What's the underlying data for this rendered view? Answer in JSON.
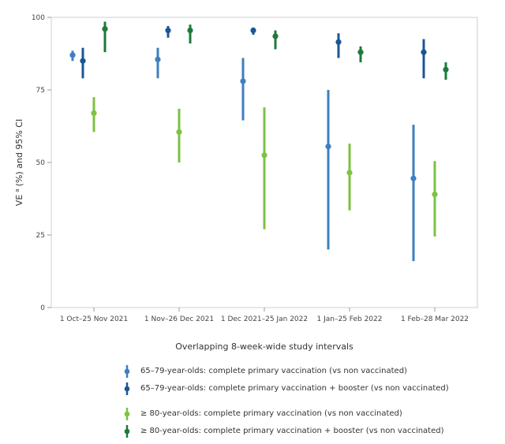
{
  "chart_data": {
    "type": "errorbar",
    "title": "",
    "xlabel": "Overlapping 8-week-wide study intervals",
    "ylabel_main": "VE",
    "ylabel_sup": "a",
    "ylabel_rest": "(%) and 95% CI",
    "ylim": [
      0,
      100
    ],
    "yticks": [
      0,
      25,
      50,
      75,
      100
    ],
    "grid": false,
    "legend_position": "bottom",
    "categories": [
      "1 Oct–25 Nov 2021",
      "1 Nov–26 Dec 2021",
      "1 Dec 2021–25 Jan 2022",
      "1 Jan–25 Feb 2022",
      "1 Feb–28 Mar 2022"
    ],
    "series": [
      {
        "name": "65–79-year-olds: complete primary vaccination (vs non vaccinated)",
        "color": "#3d7fc1",
        "values": [
          87,
          85.5,
          78,
          55.5,
          44.5
        ],
        "lower": [
          85,
          79,
          64.5,
          20,
          16
        ],
        "upper": [
          88.5,
          89.5,
          86,
          75,
          63
        ]
      },
      {
        "name": "65–79-year-olds: complete primary vaccination + booster (vs non vaccinated)",
        "color": "#1a5694",
        "values": [
          85,
          95.5,
          95.5,
          91.5,
          88
        ],
        "lower": [
          79,
          93,
          94,
          86,
          79
        ],
        "upper": [
          89.5,
          97,
          96.5,
          94.5,
          92.5
        ]
      },
      {
        "name": "≥ 80-year-olds: complete primary vaccination (vs non vaccinated)",
        "color": "#7dc242",
        "values": [
          67,
          60.5,
          52.5,
          46.5,
          39
        ],
        "lower": [
          60.5,
          50,
          27,
          33.5,
          24.5
        ],
        "upper": [
          72.5,
          68.5,
          69,
          56.5,
          50.5
        ]
      },
      {
        "name": "≥ 80-year-olds: complete primary vaccination + booster (vs non vaccinated)",
        "color": "#1e7a3a",
        "values": [
          96,
          95.5,
          93.5,
          88,
          82
        ],
        "lower": [
          88,
          91,
          89,
          84.5,
          78.5
        ],
        "upper": [
          98.5,
          97.5,
          95.5,
          90,
          84.5
        ]
      }
    ]
  }
}
